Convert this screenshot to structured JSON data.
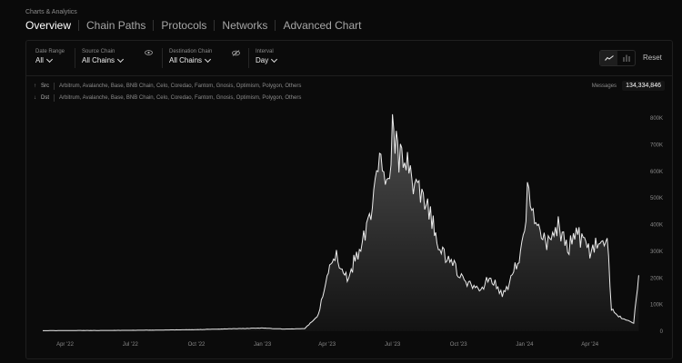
{
  "breadcrumb": "Charts & Analytics",
  "tabs": [
    {
      "label": "Overview",
      "active": true
    },
    {
      "label": "Chain Paths"
    },
    {
      "label": "Protocols"
    },
    {
      "label": "Networks"
    },
    {
      "label": "Advanced Chart"
    }
  ],
  "filters": {
    "date_range": {
      "label": "Date Range",
      "value": "All"
    },
    "source_chain": {
      "label": "Source Chain",
      "value": "All Chains"
    },
    "destination_chain": {
      "label": "Destination Chain",
      "value": "All Chains"
    },
    "interval": {
      "label": "Interval",
      "value": "Day"
    }
  },
  "reset_label": "Reset",
  "src": {
    "label": "Src",
    "chains": "Arbitrum, Avalanche, Base, BNB Chain, Celo, Coredao, Fantom, Gnosis, Optimism, Polygon, Others"
  },
  "dst": {
    "label": "Dst",
    "chains": "Arbitrum, Avalanche, Base, BNB Chain, Celo, Coredao, Fantom, Gnosis, Optimism, Polygon, Others"
  },
  "messages": {
    "label": "Messages",
    "value": "134,334,846"
  },
  "colors": {
    "accent": "#ffffff",
    "background": "#0a0a0a"
  },
  "chart_data": {
    "type": "area",
    "y_tick_labels": [
      "0",
      "100K",
      "200K",
      "300K",
      "400K",
      "500K",
      "600K",
      "700K",
      "800K"
    ],
    "x_tick_labels": [
      "Apr '22",
      "Jul '22",
      "Oct '22",
      "Jan '23",
      "Apr '23",
      "Jul '23",
      "Oct '23",
      "Jan '24",
      "Apr '24"
    ],
    "ylim": [
      0,
      800000
    ],
    "xlim": [
      "2022-03-01",
      "2024-06-10"
    ],
    "grid": false,
    "points": [
      [
        "2022-03-01",
        2000
      ],
      [
        "2022-04-01",
        2500
      ],
      [
        "2022-05-01",
        3000
      ],
      [
        "2022-06-01",
        3000
      ],
      [
        "2022-07-01",
        3500
      ],
      [
        "2022-08-01",
        4000
      ],
      [
        "2022-09-01",
        5000
      ],
      [
        "2022-10-01",
        6000
      ],
      [
        "2022-11-01",
        8000
      ],
      [
        "2022-12-01",
        10000
      ],
      [
        "2023-01-01",
        12000
      ],
      [
        "2023-02-01",
        8000
      ],
      [
        "2023-03-01",
        10000
      ],
      [
        "2023-03-20",
        60000
      ],
      [
        "2023-04-01",
        220000
      ],
      [
        "2023-04-10",
        300000
      ],
      [
        "2023-04-20",
        250000
      ],
      [
        "2023-05-01",
        180000
      ],
      [
        "2023-05-10",
        280000
      ],
      [
        "2023-05-20",
        320000
      ],
      [
        "2023-06-01",
        460000
      ],
      [
        "2023-06-15",
        640000
      ],
      [
        "2023-06-25",
        580000
      ],
      [
        "2023-07-01",
        760000
      ],
      [
        "2023-07-10",
        650000
      ],
      [
        "2023-07-20",
        620000
      ],
      [
        "2023-08-01",
        540000
      ],
      [
        "2023-08-15",
        470000
      ],
      [
        "2023-08-25",
        420000
      ],
      [
        "2023-09-01",
        320000
      ],
      [
        "2023-09-15",
        280000
      ],
      [
        "2023-10-01",
        220000
      ],
      [
        "2023-10-15",
        180000
      ],
      [
        "2023-11-01",
        150000
      ],
      [
        "2023-11-15",
        210000
      ],
      [
        "2023-12-01",
        130000
      ],
      [
        "2023-12-15",
        200000
      ],
      [
        "2024-01-01",
        350000
      ],
      [
        "2024-01-05",
        540000
      ],
      [
        "2024-01-15",
        400000
      ],
      [
        "2024-02-01",
        330000
      ],
      [
        "2024-02-15",
        400000
      ],
      [
        "2024-03-01",
        310000
      ],
      [
        "2024-03-15",
        360000
      ],
      [
        "2024-04-01",
        300000
      ],
      [
        "2024-04-15",
        330000
      ],
      [
        "2024-04-25",
        350000
      ],
      [
        "2024-05-01",
        80000
      ],
      [
        "2024-05-15",
        50000
      ],
      [
        "2024-06-01",
        30000
      ],
      [
        "2024-06-08",
        210000
      ]
    ]
  }
}
